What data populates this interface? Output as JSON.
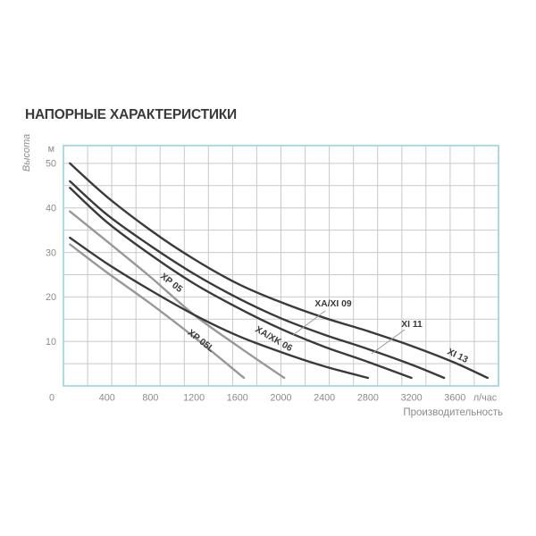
{
  "title": "НАПОРНЫЕ ХАРАКТЕРИСТИКИ",
  "chart_data": {
    "type": "line",
    "title": "НАПОРНЫЕ ХАРАКТЕРИСТИКИ",
    "xlabel": "Производительность",
    "x_unit": "л/час",
    "ylabel": "Высота",
    "y_unit": "м",
    "xlim": [
      0,
      4000
    ],
    "ylim": [
      0,
      54
    ],
    "x_ticks": [
      0,
      400,
      800,
      1200,
      1600,
      2000,
      2400,
      2800,
      3200,
      3600
    ],
    "y_ticks": [
      10,
      20,
      30,
      40,
      50
    ],
    "x_grid_divisions": 18,
    "y_grid_step": 5,
    "grid": true,
    "legend_position": "labels-on-curves",
    "colors": {
      "dark_curve": "#3a3a3c",
      "gray_curve": "#98989b",
      "grid": "#c9c9c9",
      "frame": "#a5d5e5",
      "tick_text": "#8b8b8b",
      "label_text": "#3a3a3c",
      "leader_line": "#9a9a9a",
      "background": "#ffffff"
    },
    "series": [
      {
        "name": "XI 13",
        "color": "dark",
        "points": [
          [
            60,
            50
          ],
          [
            400,
            42.5
          ],
          [
            800,
            35
          ],
          [
            1200,
            28.5
          ],
          [
            1600,
            23
          ],
          [
            2000,
            18.8
          ],
          [
            2400,
            15.3
          ],
          [
            2800,
            12.3
          ],
          [
            3200,
            9
          ],
          [
            3600,
            5.2
          ],
          [
            3900,
            1.8
          ]
        ],
        "label": {
          "x": 511,
          "y": 401,
          "rotate": 26
        }
      },
      {
        "name": "XI 11",
        "color": "dark",
        "points": [
          [
            60,
            46
          ],
          [
            400,
            38.5
          ],
          [
            800,
            31.5
          ],
          [
            1200,
            25.2
          ],
          [
            1600,
            19.8
          ],
          [
            2000,
            15.2
          ],
          [
            2400,
            11.5
          ],
          [
            2800,
            8.3
          ],
          [
            3200,
            4.8
          ],
          [
            3500,
            1.8
          ]
        ],
        "label": {
          "x": 461,
          "y": 366,
          "rotate": 0,
          "leader": [
            453,
            369,
            416,
            396
          ]
        }
      },
      {
        "name": "XA/XI 09",
        "color": "dark",
        "points": [
          [
            60,
            44.5
          ],
          [
            400,
            36.8
          ],
          [
            800,
            29.5
          ],
          [
            1200,
            23
          ],
          [
            1600,
            17.6
          ],
          [
            2000,
            12.8
          ],
          [
            2400,
            8.8
          ],
          [
            2800,
            5.4
          ],
          [
            3200,
            1.8
          ]
        ],
        "label": {
          "x": 373,
          "y": 343,
          "rotate": 0,
          "leader": [
            364,
            348,
            328,
            375
          ]
        }
      },
      {
        "name": "XA/XK 06",
        "color": "dark",
        "points": [
          [
            60,
            33.3
          ],
          [
            400,
            27.5
          ],
          [
            800,
            21.5
          ],
          [
            1200,
            16
          ],
          [
            1600,
            11.3
          ],
          [
            2000,
            7.6
          ],
          [
            2400,
            4.4
          ],
          [
            2800,
            1.8
          ]
        ],
        "label": {
          "x": 305,
          "y": 382,
          "rotate": 30
        }
      },
      {
        "name": "XP 05",
        "color": "gray",
        "points": [
          [
            60,
            39.2
          ],
          [
            400,
            32.5
          ],
          [
            800,
            24.5
          ],
          [
            1200,
            16
          ],
          [
            1600,
            9
          ],
          [
            2030,
            1.8
          ]
        ],
        "label": {
          "x": 190,
          "y": 319,
          "rotate": 38
        }
      },
      {
        "name": "XP 05L",
        "color": "gray",
        "points": [
          [
            60,
            31.8
          ],
          [
            400,
            25.5
          ],
          [
            800,
            18.5
          ],
          [
            1200,
            11
          ],
          [
            1660,
            1.8
          ]
        ],
        "label": {
          "x": 223,
          "y": 384,
          "rotate": 38
        }
      }
    ]
  }
}
